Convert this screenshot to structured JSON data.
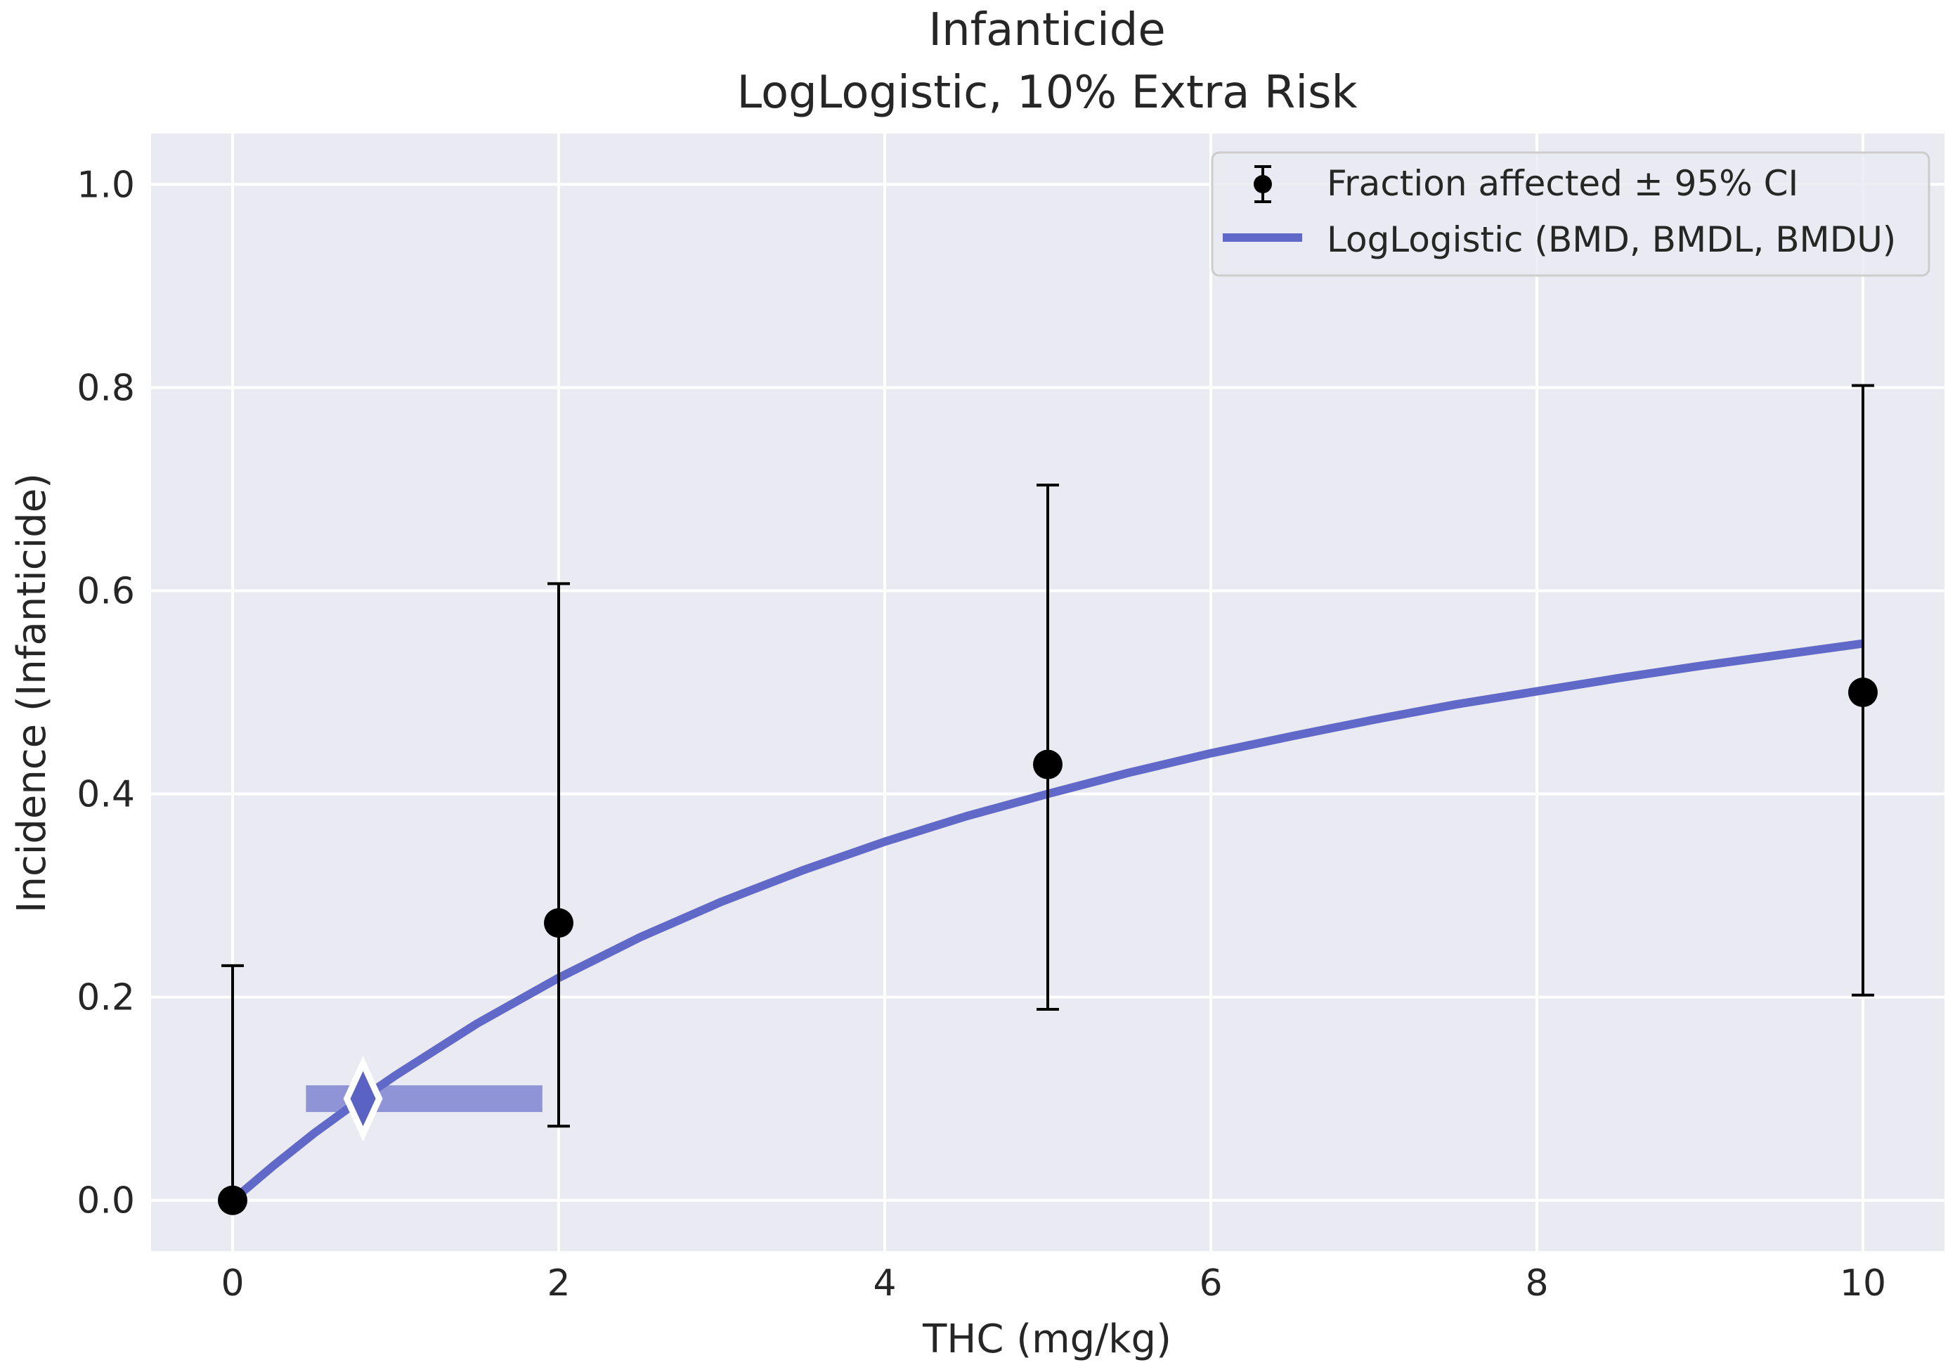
{
  "chart_data": {
    "type": "scatter",
    "title": "Infanticide",
    "subtitle": "LogLogistic, 10% Extra Risk",
    "xlabel": "THC (mg/kg)",
    "ylabel": "Incidence (Infanticide)",
    "xlim": [
      -0.5,
      10.5
    ],
    "ylim": [
      -0.05,
      1.05
    ],
    "xticks": [
      0,
      2,
      4,
      6,
      8,
      10
    ],
    "xtick_labels": [
      "0",
      "2",
      "4",
      "6",
      "8",
      "10"
    ],
    "yticks": [
      0.0,
      0.2,
      0.4,
      0.6,
      0.8,
      1.0
    ],
    "ytick_labels": [
      "0.0",
      "0.2",
      "0.4",
      "0.6",
      "0.8",
      "1.0"
    ],
    "grid": true,
    "legend_position": "top-right",
    "series": [
      {
        "name": "Fraction affected ± 95% CI",
        "kind": "errorbar",
        "x": [
          0,
          2,
          5,
          10
        ],
        "y": [
          0.0,
          0.273,
          0.429,
          0.5
        ],
        "lower": [
          0.0,
          0.073,
          0.188,
          0.202
        ],
        "upper": [
          0.231,
          0.607,
          0.704,
          0.802
        ],
        "color": "#000000"
      },
      {
        "name": "LogLogistic (BMD, BMDL, BMDU)",
        "kind": "line",
        "x": [
          0,
          0.25,
          0.5,
          0.8,
          1,
          1.5,
          2,
          2.5,
          3,
          3.5,
          4,
          4.5,
          5,
          5.5,
          6,
          6.5,
          7,
          7.5,
          8,
          8.5,
          9,
          9.5,
          10
        ],
        "y": [
          0.0,
          0.034,
          0.066,
          0.101,
          0.123,
          0.174,
          0.219,
          0.259,
          0.294,
          0.325,
          0.353,
          0.378,
          0.4,
          0.421,
          0.44,
          0.457,
          0.473,
          0.488,
          0.501,
          0.514,
          0.526,
          0.537,
          0.548
        ],
        "color": "#6068c8"
      }
    ],
    "bmd": {
      "value": 0.8,
      "bmdl": 0.45,
      "bmdu": 1.9,
      "response": 0.1
    }
  }
}
